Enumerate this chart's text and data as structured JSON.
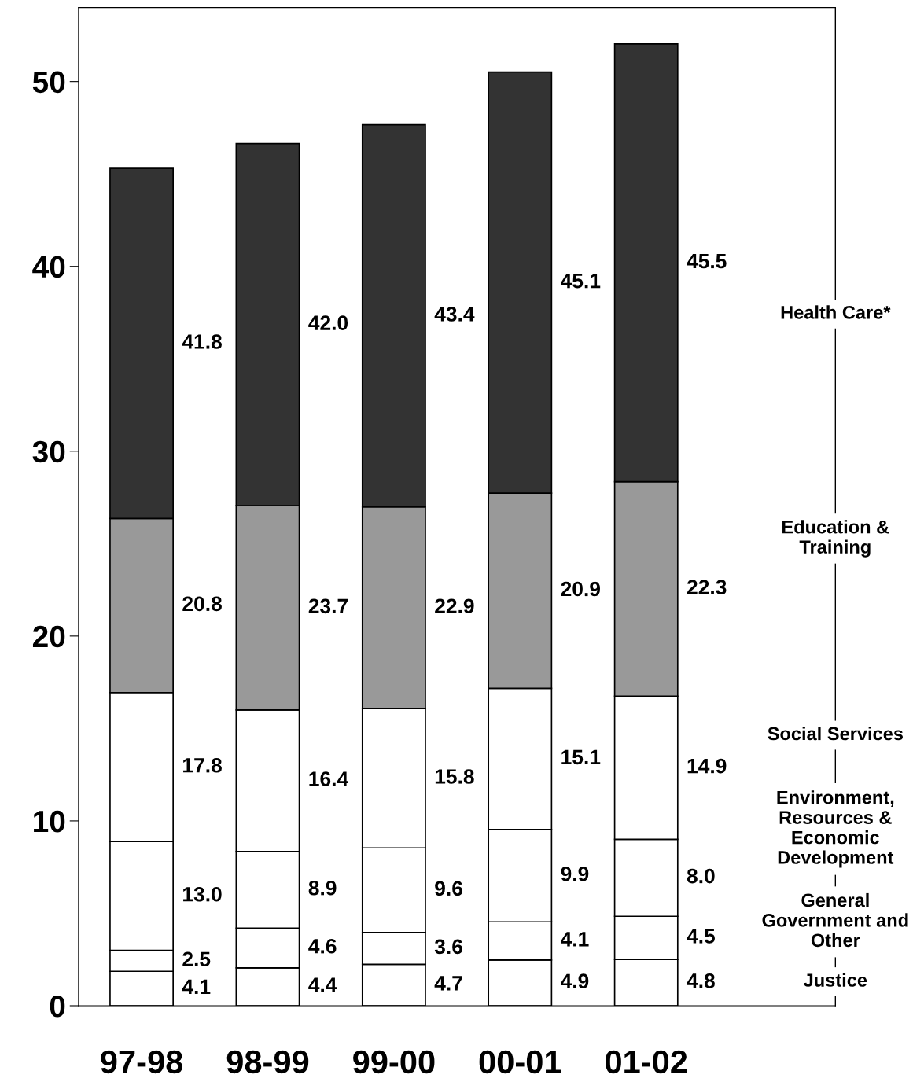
{
  "chart_data": {
    "type": "bar",
    "stacked": true,
    "categories": [
      "97-98",
      "98-99",
      "99-00",
      "00-01",
      "01-02"
    ],
    "series": [
      {
        "name": "Justice",
        "color": "#ffffff",
        "values": [
          1.86,
          2.05,
          2.24,
          2.47,
          2.5
        ]
      },
      {
        "name": "General Government and Other",
        "color": "#ffffff",
        "values": [
          1.13,
          2.15,
          1.72,
          2.07,
          2.34
        ]
      },
      {
        "name": "Environment, Resources & Economic Development",
        "color": "#ffffff",
        "values": [
          5.89,
          4.15,
          4.58,
          5.0,
          4.16
        ]
      },
      {
        "name": "Social Services",
        "color": "#ffffff",
        "values": [
          8.06,
          7.65,
          7.53,
          7.63,
          7.75
        ]
      },
      {
        "name": "Education & Training",
        "color": "#999999",
        "values": [
          9.42,
          11.05,
          10.91,
          10.56,
          11.6
        ]
      },
      {
        "name": "Health Care*",
        "color": "#333333",
        "values": [
          18.94,
          19.59,
          20.68,
          22.78,
          23.68
        ]
      }
    ],
    "annotations": [
      "4.1",
      "4.4",
      "4.7",
      "4.9",
      "4.8",
      "2.5",
      "4.6",
      "3.6",
      "4.1",
      "4.5",
      "13.0",
      "8.9",
      "9.6",
      "9.9",
      "8.0",
      "17.8",
      "16.4",
      "15.8",
      "15.1",
      "14.9",
      "20.8",
      "23.7",
      "22.9",
      "20.9",
      "22.3",
      "41.8",
      "42.0",
      "43.4",
      "45.1",
      "45.5"
    ],
    "ylim": [
      0,
      54
    ],
    "yticks": [
      0,
      10,
      20,
      30,
      40,
      50
    ],
    "grid": false,
    "legend": "right"
  }
}
